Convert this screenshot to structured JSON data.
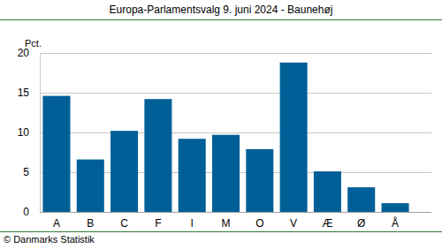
{
  "chart_data": {
    "type": "bar",
    "title": "Europa-Parlamentsvalg 9. juni 2024 - Baunehøj",
    "ylabel": "Pct.",
    "source": "© Danmarks Statistik",
    "categories": [
      "A",
      "B",
      "C",
      "F",
      "I",
      "M",
      "O",
      "V",
      "Æ",
      "Ø",
      "Å"
    ],
    "values": [
      14.6,
      6.6,
      10.2,
      14.2,
      9.2,
      9.7,
      7.9,
      18.8,
      5.1,
      3.1,
      1.1
    ],
    "color": "#005f96",
    "ylim": [
      0,
      20
    ],
    "yticks": [
      0,
      5,
      10,
      15,
      20
    ],
    "grid": true
  }
}
